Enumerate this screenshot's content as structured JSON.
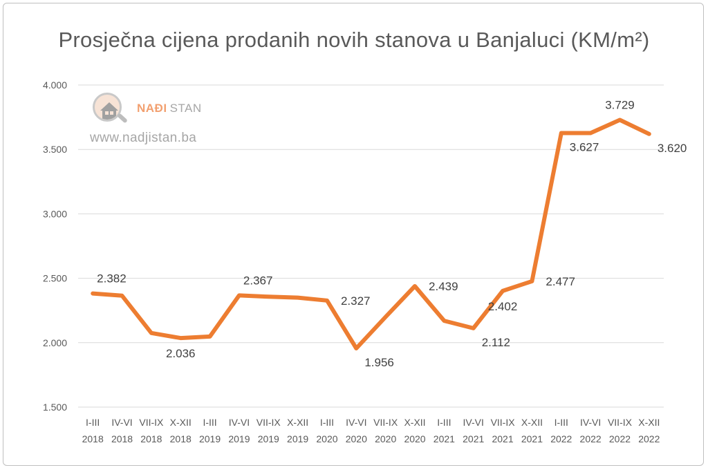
{
  "chart_data": {
    "type": "line",
    "title": "Prosječna cijena prodanih novih stanova u Banjaluci (KM/m²)",
    "xlabel": "",
    "ylabel": "",
    "ylim": [
      1500,
      4000
    ],
    "yticks": [
      1500,
      2000,
      2500,
      3000,
      3500,
      4000
    ],
    "ytick_labels": [
      "1.500",
      "2.000",
      "2.500",
      "3.000",
      "3.500",
      "4.000"
    ],
    "grid": true,
    "legend": "none",
    "categories": [
      [
        "I-III",
        "2018"
      ],
      [
        "IV-VI",
        "2018"
      ],
      [
        "VII-IX",
        "2018"
      ],
      [
        "X-XII",
        "2018"
      ],
      [
        "I-III",
        "2019"
      ],
      [
        "IV-VI",
        "2019"
      ],
      [
        "VII-IX",
        "2019"
      ],
      [
        "X-XII",
        "2019"
      ],
      [
        "I-III",
        "2020"
      ],
      [
        "IV-VI",
        "2020"
      ],
      [
        "VII-IX",
        "2020"
      ],
      [
        "X-XII",
        "2020"
      ],
      [
        "I-III",
        "2021"
      ],
      [
        "IV-VI",
        "2021"
      ],
      [
        "VII-IX",
        "2021"
      ],
      [
        "X-XII",
        "2021"
      ],
      [
        "I-III",
        "2022"
      ],
      [
        "IV-VI",
        "2022"
      ],
      [
        "VII-IX",
        "2022"
      ],
      [
        "X-XII",
        "2022"
      ]
    ],
    "series": [
      {
        "values": [
          2382,
          2365,
          2075,
          2036,
          2048,
          2367,
          2357,
          2350,
          2327,
          1956,
          2200,
          2439,
          2170,
          2112,
          2402,
          2477,
          3627,
          3627,
          3729,
          3620
        ],
        "color": "#ed7d31"
      }
    ],
    "data_labels": [
      {
        "index": 0,
        "text": "2.382",
        "pos": "above-right"
      },
      {
        "index": 3,
        "text": "2.036",
        "pos": "below"
      },
      {
        "index": 5,
        "text": "2.367",
        "pos": "above-right"
      },
      {
        "index": 8,
        "text": "2.327",
        "pos": "right"
      },
      {
        "index": 9,
        "text": "1.956",
        "pos": "below-right"
      },
      {
        "index": 11,
        "text": "2.439",
        "pos": "right"
      },
      {
        "index": 13,
        "text": "2.112",
        "pos": "below-right"
      },
      {
        "index": 14,
        "text": "2.402",
        "pos": "below"
      },
      {
        "index": 15,
        "text": "2.477",
        "pos": "right"
      },
      {
        "index": 16,
        "text": "3.627",
        "pos": "below-right"
      },
      {
        "index": 18,
        "text": "3.729",
        "pos": "above"
      },
      {
        "index": 19,
        "text": "3.620",
        "pos": "below-right"
      }
    ]
  },
  "watermark": {
    "brand_part1": "NAĐI",
    "brand_part2": "STAN",
    "url": "www.nadjistan.ba",
    "brand_color": "#f2a070",
    "icon": "house-magnifier-icon"
  }
}
